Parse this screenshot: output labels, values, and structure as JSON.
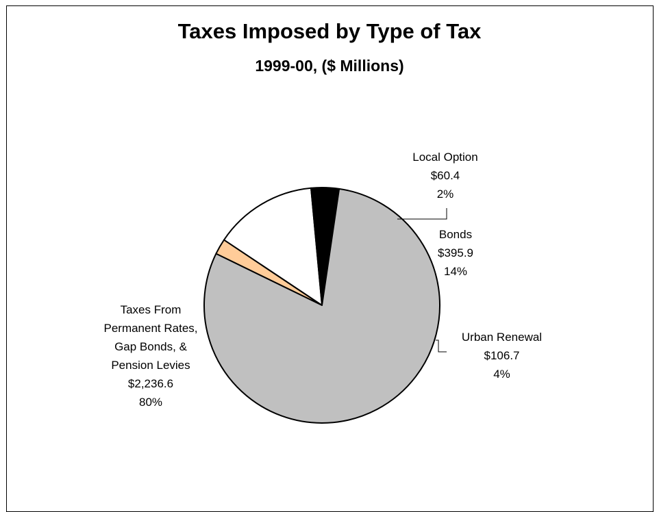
{
  "chart_data": {
    "type": "pie",
    "title": "Taxes Imposed by Type of Tax",
    "subtitle": "1999-00, ($ Millions)",
    "slices": [
      {
        "label_lines": [
          "Local Option"
        ],
        "amount": "$60.4",
        "percent_text": "2%",
        "value": 60.4,
        "color": "#FFCC99"
      },
      {
        "label_lines": [
          "Bonds"
        ],
        "amount": "$395.9",
        "percent_text": "14%",
        "value": 395.9,
        "color": "#FFFFFF"
      },
      {
        "label_lines": [
          "Urban Renewal"
        ],
        "amount": "$106.7",
        "percent_text": "4%",
        "value": 106.7,
        "color": "#000000"
      },
      {
        "label_lines": [
          "Taxes From",
          "Permanent Rates,",
          "Gap Bonds, &",
          "Pension Levies"
        ],
        "amount": "$2,236.6",
        "percent_text": "80%",
        "value": 2236.6,
        "color": "#C0C0C0"
      }
    ]
  }
}
